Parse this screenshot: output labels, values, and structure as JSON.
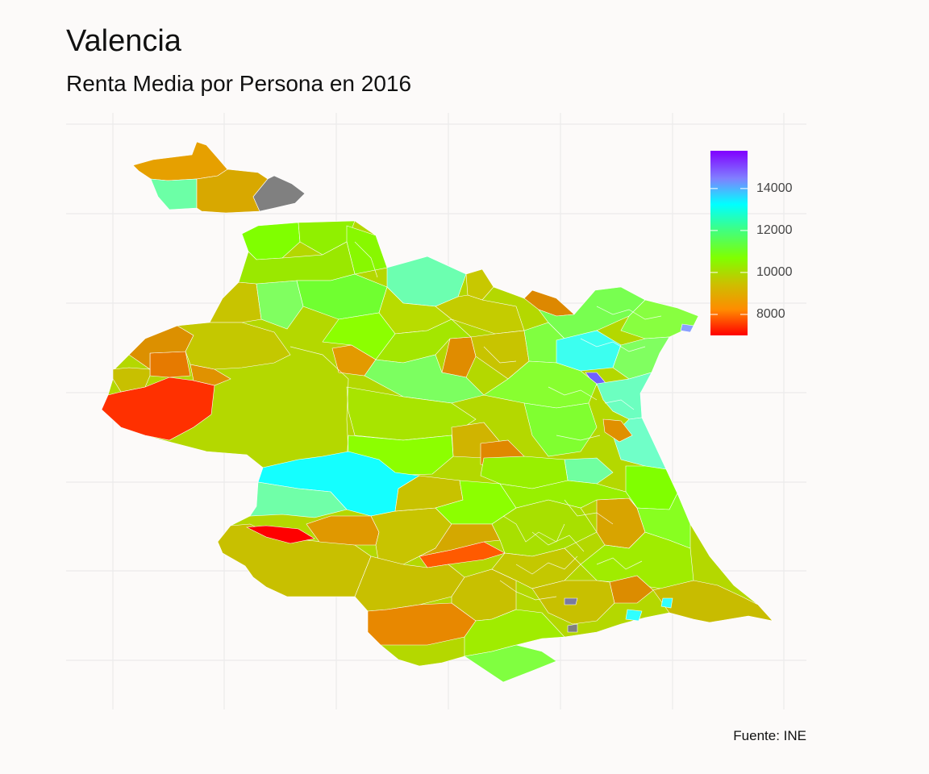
{
  "title": "Valencia",
  "subtitle": "Renta Media por Persona en 2016",
  "caption": "Fuente: INE",
  "legend": {
    "min": 7000,
    "max": 15800,
    "ticks": [
      {
        "value": 14000,
        "label": "14000"
      },
      {
        "value": 12000,
        "label": "12000"
      },
      {
        "value": 10000,
        "label": "10000"
      },
      {
        "value": 8000,
        "label": "8000"
      }
    ],
    "gradient": [
      "#ff0000",
      "#ff8c00",
      "#ccc000",
      "#80ff00",
      "#40ff80",
      "#00ffff",
      "#8080ff",
      "#8000ff"
    ]
  },
  "colors": {
    "background": "#fcfaf9",
    "grid": "#ebebeb",
    "border": "#ffffff"
  }
}
